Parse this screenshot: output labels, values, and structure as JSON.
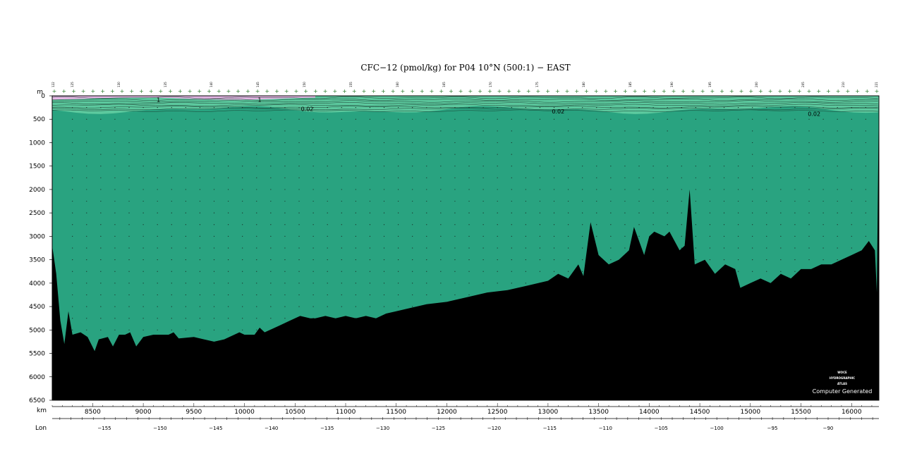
{
  "chart_data": {
    "type": "section",
    "title": "CFC−12 (pmol/kg) for P04 10°N (500:1) − EAST",
    "y_unit": "m",
    "x_unit": "km",
    "lon_label": "Lon",
    "ylim": [
      6500,
      0
    ],
    "xlim": [
      8100,
      16270
    ],
    "y_ticks": [
      0,
      500,
      1000,
      1500,
      2000,
      2500,
      3000,
      3500,
      4000,
      4500,
      5000,
      5500,
      6000,
      6500
    ],
    "x_ticks": [
      8500,
      9000,
      9500,
      10000,
      10500,
      11000,
      11500,
      12000,
      12500,
      13000,
      13500,
      14000,
      14500,
      15000,
      15500,
      16000
    ],
    "lon_ticks": [
      -155,
      -150,
      -145,
      -140,
      -135,
      -130,
      -125,
      -120,
      -115,
      -110,
      -105,
      -100,
      -95,
      -90
    ],
    "stations": [
      "122",
      "125",
      "130",
      "135",
      "140",
      "145",
      "150",
      "155",
      "160",
      "165",
      "170",
      "175",
      "180",
      "185",
      "190",
      "195",
      "200",
      "205",
      "210",
      "221"
    ],
    "contour_labels": [
      {
        "text": "1",
        "x": 9150,
        "y": 80
      },
      {
        "text": "1",
        "x": 10150,
        "y": 80
      },
      {
        "text": "0.02",
        "x": 10620,
        "y": 280
      },
      {
        "text": "0.02",
        "x": 13100,
        "y": 330
      },
      {
        "text": "0.02",
        "x": 15630,
        "y": 380
      }
    ],
    "bottom_depth_profile": [
      [
        8100,
        3200
      ],
      [
        8140,
        3800
      ],
      [
        8180,
        4800
      ],
      [
        8220,
        5300
      ],
      [
        8260,
        4600
      ],
      [
        8300,
        5100
      ],
      [
        8380,
        5050
      ],
      [
        8450,
        5150
      ],
      [
        8520,
        5450
      ],
      [
        8560,
        5200
      ],
      [
        8650,
        5150
      ],
      [
        8700,
        5350
      ],
      [
        8760,
        5100
      ],
      [
        8820,
        5100
      ],
      [
        8870,
        5050
      ],
      [
        8930,
        5350
      ],
      [
        9000,
        5150
      ],
      [
        9100,
        5100
      ],
      [
        9250,
        5100
      ],
      [
        9300,
        5050
      ],
      [
        9350,
        5180
      ],
      [
        9500,
        5150
      ],
      [
        9600,
        5200
      ],
      [
        9700,
        5250
      ],
      [
        9800,
        5200
      ],
      [
        9950,
        5050
      ],
      [
        10000,
        5100
      ],
      [
        10100,
        5100
      ],
      [
        10150,
        4950
      ],
      [
        10200,
        5050
      ],
      [
        10350,
        4900
      ],
      [
        10450,
        4800
      ],
      [
        10550,
        4700
      ],
      [
        10650,
        4750
      ],
      [
        10700,
        4750
      ],
      [
        10800,
        4700
      ],
      [
        10900,
        4750
      ],
      [
        11000,
        4700
      ],
      [
        11100,
        4750
      ],
      [
        11200,
        4700
      ],
      [
        11300,
        4750
      ],
      [
        11400,
        4650
      ],
      [
        11500,
        4600
      ],
      [
        11600,
        4550
      ],
      [
        11800,
        4450
      ],
      [
        12000,
        4400
      ],
      [
        12200,
        4300
      ],
      [
        12400,
        4200
      ],
      [
        12600,
        4150
      ],
      [
        12800,
        4050
      ],
      [
        13000,
        3950
      ],
      [
        13100,
        3800
      ],
      [
        13200,
        3900
      ],
      [
        13300,
        3600
      ],
      [
        13350,
        3850
      ],
      [
        13420,
        2700
      ],
      [
        13500,
        3400
      ],
      [
        13600,
        3600
      ],
      [
        13700,
        3500
      ],
      [
        13800,
        3300
      ],
      [
        13850,
        2800
      ],
      [
        13950,
        3400
      ],
      [
        14000,
        3000
      ],
      [
        14050,
        2900
      ],
      [
        14150,
        3000
      ],
      [
        14200,
        2900
      ],
      [
        14300,
        3300
      ],
      [
        14350,
        3200
      ],
      [
        14400,
        2000
      ],
      [
        14450,
        3600
      ],
      [
        14550,
        3500
      ],
      [
        14650,
        3800
      ],
      [
        14750,
        3600
      ],
      [
        14850,
        3700
      ],
      [
        14900,
        4100
      ],
      [
        15000,
        4000
      ],
      [
        15100,
        3900
      ],
      [
        15200,
        4000
      ],
      [
        15300,
        3800
      ],
      [
        15400,
        3900
      ],
      [
        15500,
        3700
      ],
      [
        15600,
        3700
      ],
      [
        15700,
        3600
      ],
      [
        15800,
        3600
      ],
      [
        15900,
        3500
      ],
      [
        16000,
        3400
      ],
      [
        16100,
        3300
      ],
      [
        16170,
        3100
      ],
      [
        16230,
        3300
      ],
      [
        16250,
        4200
      ],
      [
        16270,
        0
      ]
    ],
    "colors": {
      "water": "#29a380",
      "surface_band": "#5cc99e",
      "high_cfc": "#e6b8e6",
      "seafloor": "#000000"
    }
  },
  "branding": {
    "logo_line1": "WOCE",
    "logo_line2": "HYDROGRAPHIC",
    "logo_line3": "ATLAS",
    "computer_generated": "Computer Generated"
  }
}
